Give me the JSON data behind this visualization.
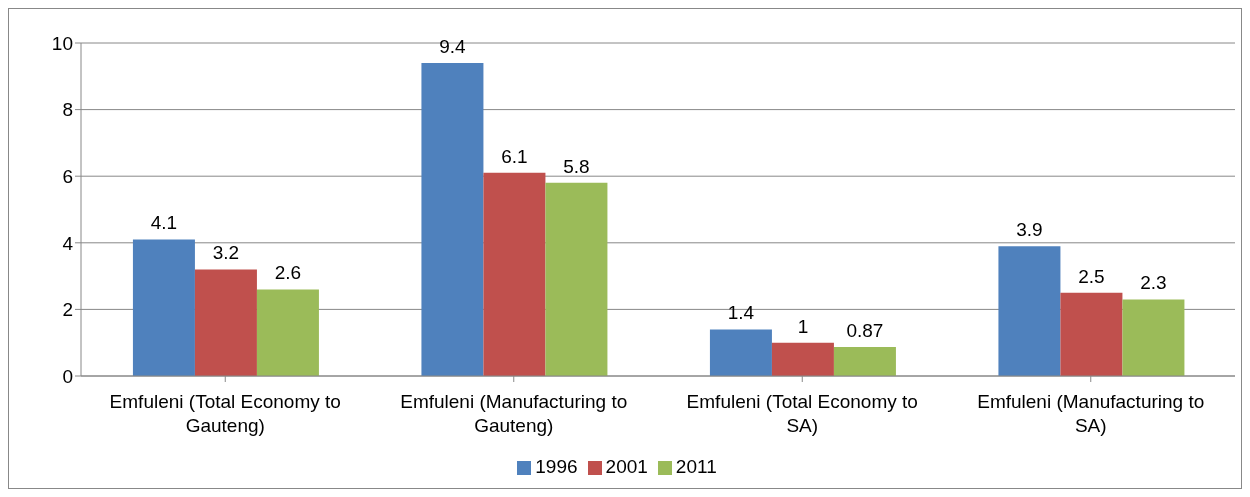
{
  "chart_data": {
    "type": "bar",
    "categories": [
      "Emfuleni (Total Economy to Gauteng)",
      "Emfuleni (Manufacturing to Gauteng)",
      "Emfuleni (Total Economy to SA)",
      "Emfuleni (Manufacturing to SA)"
    ],
    "series": [
      {
        "name": "1996",
        "color": "#4f81bd",
        "values": [
          4.1,
          9.4,
          1.4,
          3.9
        ]
      },
      {
        "name": "2001",
        "color": "#c0504d",
        "values": [
          3.2,
          6.1,
          1,
          2.5
        ]
      },
      {
        "name": "2011",
        "color": "#9bbb59",
        "values": [
          2.6,
          5.8,
          0.87,
          2.3
        ]
      }
    ],
    "ylim": [
      0,
      10
    ],
    "yticks": [
      0,
      2,
      4,
      6,
      8,
      10
    ],
    "grid": "y",
    "legend": "bottom",
    "data_labels": true
  }
}
